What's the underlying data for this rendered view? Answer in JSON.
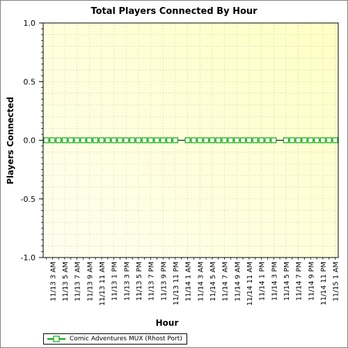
{
  "chart_data": {
    "type": "line",
    "title": "Total Players Connected By Hour",
    "xlabel": "Hour",
    "ylabel": "Players Connected",
    "ylim": [
      -1.0,
      1.0
    ],
    "yticks": [
      1.0,
      0.5,
      0.0,
      -0.5,
      -1.0
    ],
    "ytick_labels": [
      "1.0",
      "0.5",
      "0.0",
      "-0.5",
      "-1.0"
    ],
    "x_tick_labels": [
      "11/13 3 AM",
      "11/13 5 AM",
      "11/13 7 AM",
      "11/13 9 AM",
      "11/13 11 AM",
      "11/13 1 PM",
      "11/13 3 PM",
      "11/13 5 PM",
      "11/13 7 PM",
      "11/13 9 PM",
      "11/13 11 PM",
      "11/14 1 AM",
      "11/14 3 AM",
      "11/14 5 AM",
      "11/14 7 AM",
      "11/14 9 AM",
      "11/14 11 AM",
      "11/14 1 PM",
      "11/14 3 PM",
      "11/14 5 PM",
      "11/14 7 PM",
      "11/14 9 PM",
      "11/14 11 PM",
      "11/15 1 AM"
    ],
    "x": [
      "11/13 2 AM",
      "11/13 3 AM",
      "11/13 4 AM",
      "11/13 5 AM",
      "11/13 6 AM",
      "11/13 7 AM",
      "11/13 8 AM",
      "11/13 9 AM",
      "11/13 10 AM",
      "11/13 11 AM",
      "11/13 12 PM",
      "11/13 1 PM",
      "11/13 2 PM",
      "11/13 3 PM",
      "11/13 4 PM",
      "11/13 5 PM",
      "11/13 6 PM",
      "11/13 7 PM",
      "11/13 8 PM",
      "11/13 9 PM",
      "11/13 10 PM",
      "11/13 11 PM",
      "11/14 12 AM",
      "11/14 1 AM",
      "11/14 2 AM",
      "11/14 3 AM",
      "11/14 4 AM",
      "11/14 5 AM",
      "11/14 6 AM",
      "11/14 7 AM",
      "11/14 8 AM",
      "11/14 9 AM",
      "11/14 10 AM",
      "11/14 11 AM",
      "11/14 12 PM",
      "11/14 1 PM",
      "11/14 2 PM",
      "11/14 3 PM",
      "11/14 4 PM",
      "11/14 5 PM",
      "11/14 6 PM",
      "11/14 7 PM",
      "11/14 8 PM",
      "11/14 9 PM",
      "11/14 10 PM",
      "11/14 11 PM",
      "11/15 12 AM",
      "11/15 1 AM"
    ],
    "series": [
      {
        "name": "Comic Adventures MUX (Rhost Port)",
        "color": "#00aa00",
        "values": [
          0,
          0,
          0,
          0,
          0,
          0,
          0,
          0,
          0,
          0,
          0,
          0,
          0,
          0,
          0,
          0,
          0,
          0,
          0,
          0,
          0,
          0,
          null,
          0,
          0,
          0,
          0,
          0,
          0,
          0,
          0,
          0,
          0,
          0,
          0,
          0,
          0,
          0,
          null,
          0,
          0,
          0,
          0,
          0,
          0,
          0,
          0,
          0
        ]
      }
    ],
    "grid": true,
    "legend_position": "bottom-left",
    "background": [
      "#fffff0",
      "#ffffc4"
    ]
  }
}
